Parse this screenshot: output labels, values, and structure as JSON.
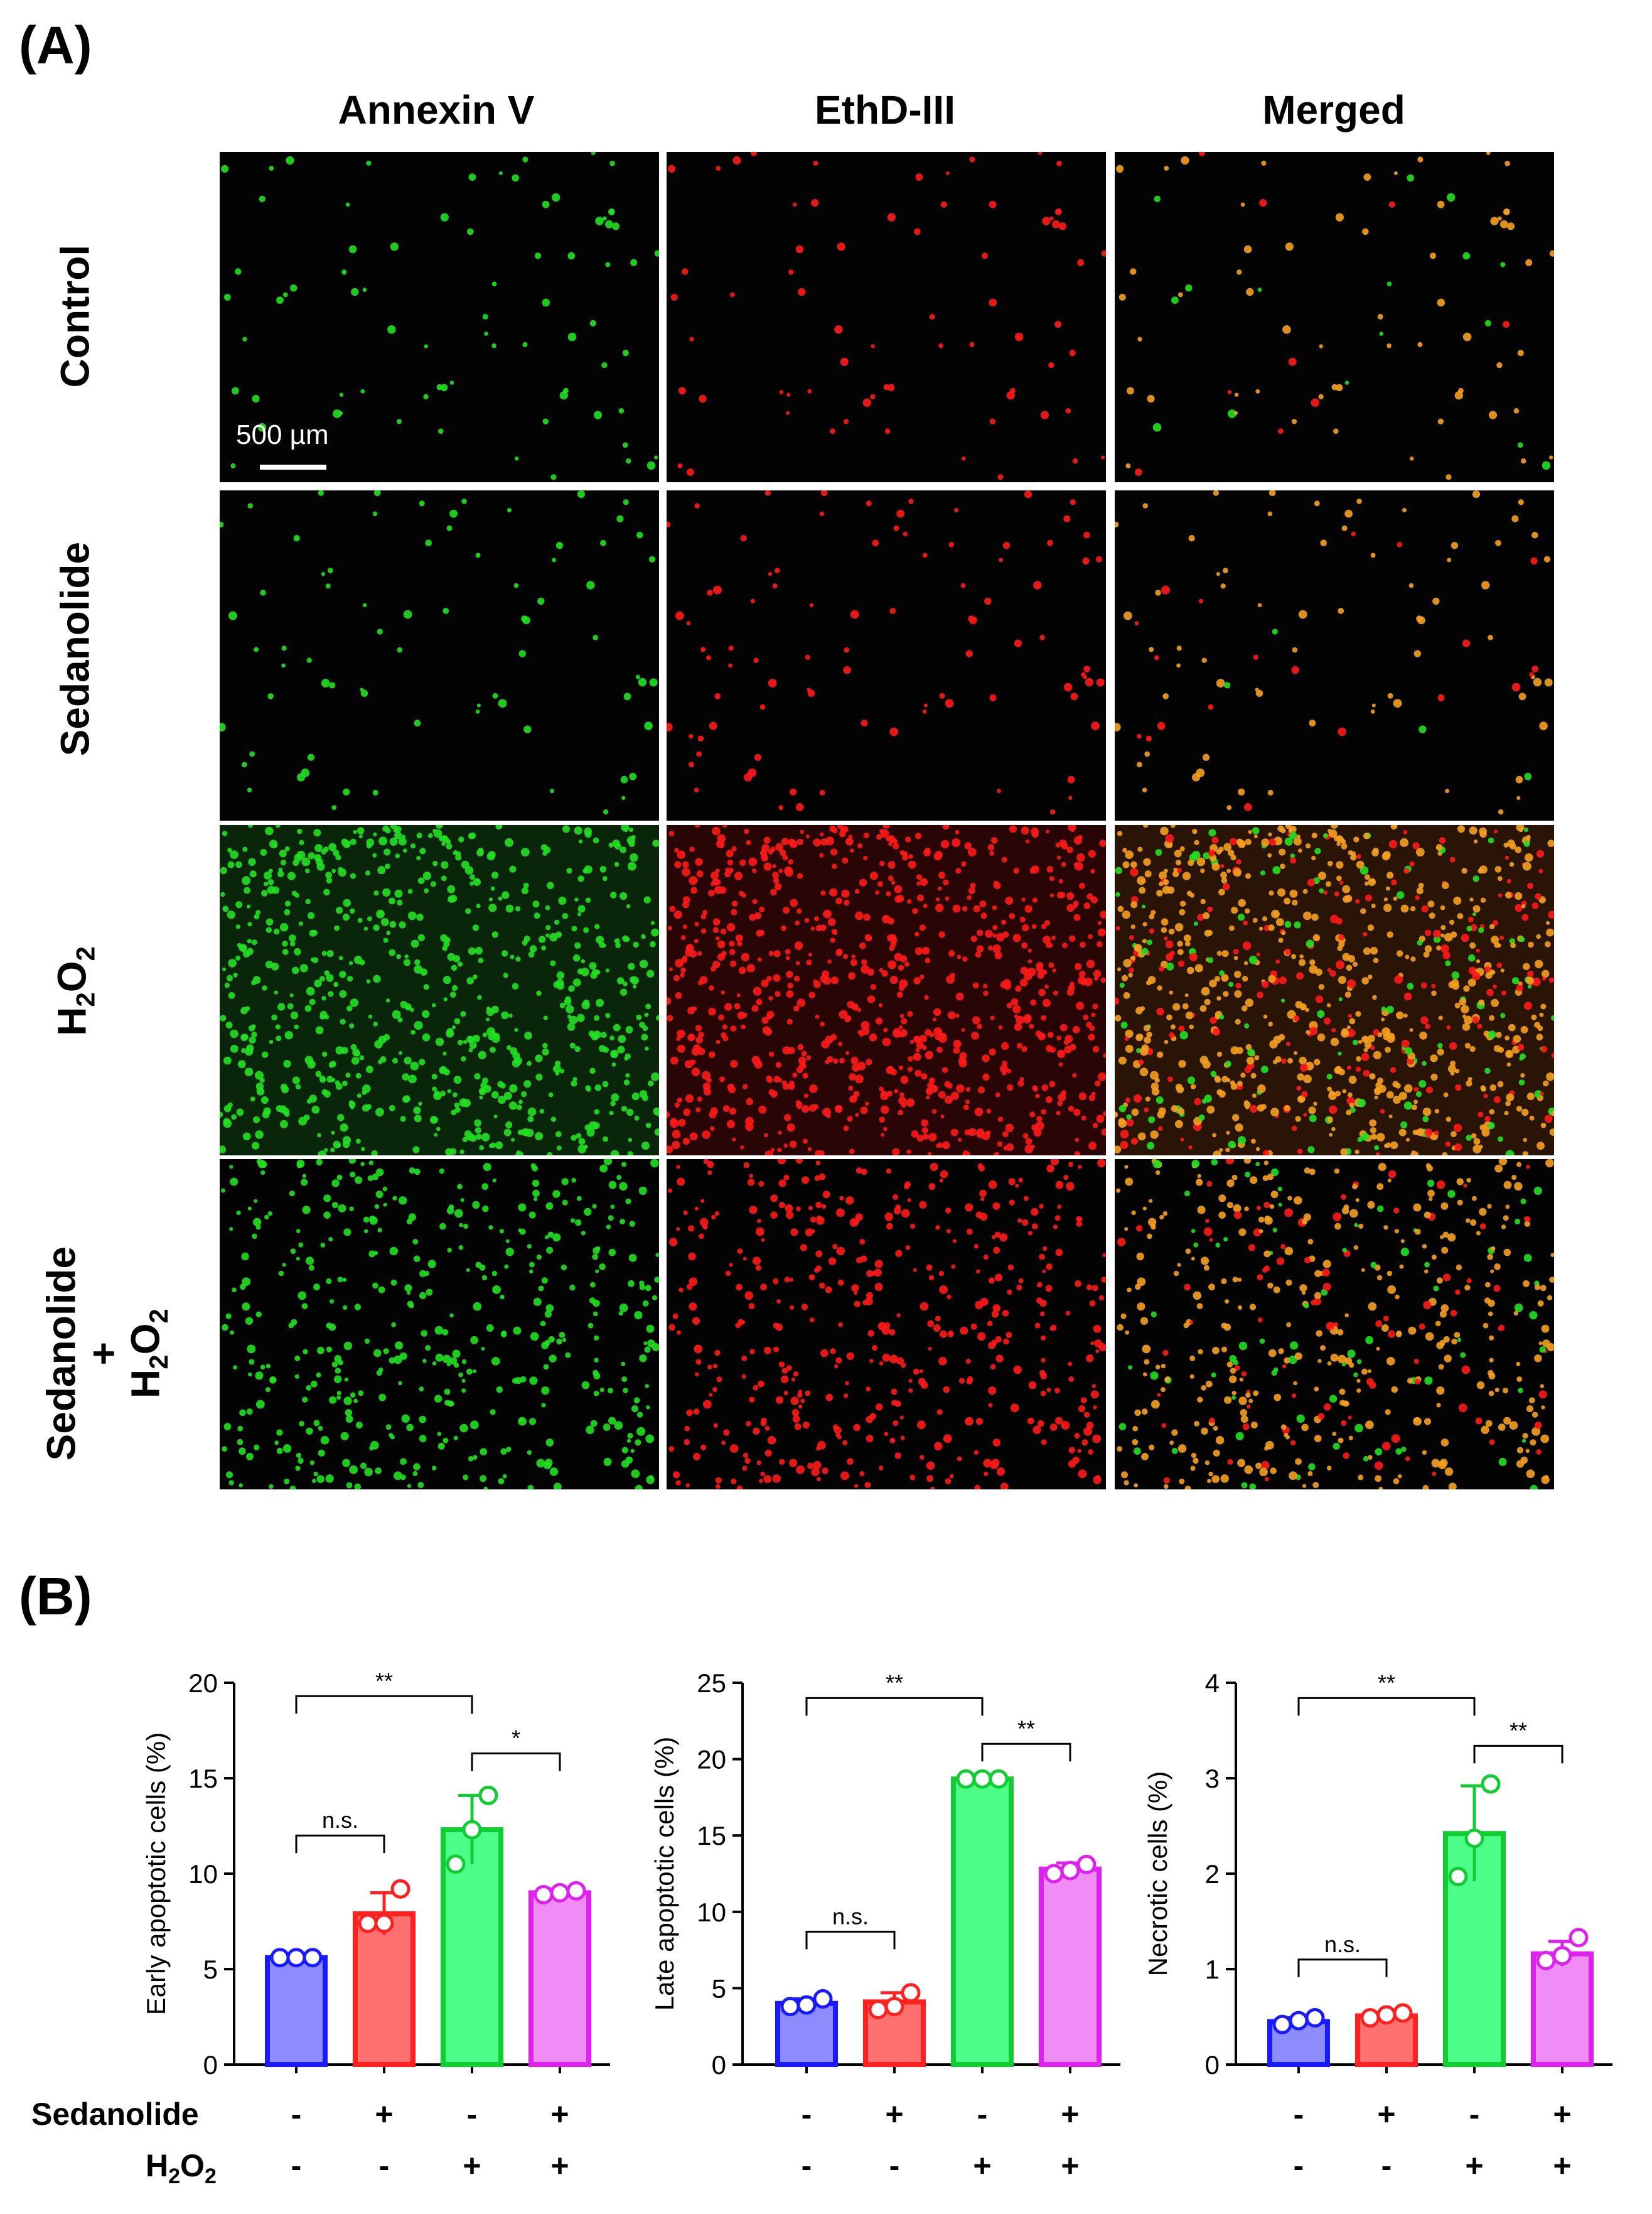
{
  "panel_a": {
    "letter": "(A)",
    "columns": [
      "Annexin V",
      "EthD-III",
      "Merged"
    ],
    "rows": [
      {
        "label": "Control",
        "density": 0.06
      },
      {
        "label": "Sedanolide",
        "density": 0.07
      },
      {
        "label_main": "H",
        "sub1": "2",
        "mid": "O",
        "sub2": "2",
        "density": 1.0
      },
      {
        "line1": "Sedanolide",
        "line2": "+",
        "label_main": "H",
        "sub1": "2",
        "mid": "O",
        "sub2": "2",
        "density": 0.55
      }
    ],
    "scale_bar": "500 µm",
    "colors": {
      "annexin": "#22e022",
      "ethd": "#ff1a1a",
      "merged_overlap": "#f5a020"
    }
  },
  "panel_b": {
    "letter": "(B)",
    "factors": [
      {
        "name": "Sedanolide",
        "signs": [
          "-",
          "+",
          "-",
          "+"
        ]
      },
      {
        "name_main": "H",
        "sub1": "2",
        "mid": "O",
        "sub2": "2",
        "signs": [
          "-",
          "-",
          "+",
          "+"
        ]
      }
    ]
  },
  "chart_data": [
    {
      "type": "bar",
      "ylabel": "Early apoptotic cells (%)",
      "ylim": [
        0,
        20
      ],
      "yticks": [
        0,
        5,
        10,
        15,
        20
      ],
      "values": [
        5.6,
        7.9,
        12.3,
        9.0
      ],
      "errors": [
        0.1,
        1.1,
        1.8,
        0.2
      ],
      "points": [
        [
          5.6,
          5.6,
          5.6
        ],
        [
          7.4,
          7.4,
          9.2
        ],
        [
          10.5,
          12.3,
          14.1
        ],
        [
          8.9,
          9.0,
          9.1
        ]
      ],
      "colors_fill": [
        "#8c8cff",
        "#ff7070",
        "#4dff88",
        "#f08cf5"
      ],
      "colors_edge": [
        "#1a1aff",
        "#ff2020",
        "#11cc33",
        "#dd22ee"
      ],
      "brackets": [
        {
          "from": 0,
          "to": 2,
          "y": 19.3,
          "label": "**"
        },
        {
          "from": 2,
          "to": 3,
          "y": 16.3,
          "label": "*"
        },
        {
          "from": 0,
          "to": 1,
          "y": 12.0,
          "label": "n.s."
        }
      ]
    },
    {
      "type": "bar",
      "ylabel": "Late apoptotic cells (%)",
      "ylim": [
        0,
        25
      ],
      "yticks": [
        0,
        5,
        10,
        15,
        20,
        25
      ],
      "values": [
        4.0,
        4.1,
        18.7,
        12.8
      ],
      "errors": [
        0.3,
        0.6,
        0.1,
        0.4
      ],
      "points": [
        [
          3.8,
          3.9,
          4.3
        ],
        [
          3.6,
          3.8,
          4.7
        ],
        [
          18.7,
          18.7,
          18.7
        ],
        [
          12.5,
          12.7,
          13.1
        ]
      ],
      "colors_fill": [
        "#8c8cff",
        "#ff7070",
        "#4dff88",
        "#f08cf5"
      ],
      "colors_edge": [
        "#1a1aff",
        "#ff2020",
        "#11cc33",
        "#dd22ee"
      ],
      "brackets": [
        {
          "from": 0,
          "to": 2,
          "y": 24.0,
          "label": "**"
        },
        {
          "from": 2,
          "to": 3,
          "y": 21.0,
          "label": "**"
        },
        {
          "from": 0,
          "to": 1,
          "y": 8.7,
          "label": "n.s."
        }
      ]
    },
    {
      "type": "bar",
      "ylabel": "Necrotic cells (%)",
      "ylim": [
        0,
        4
      ],
      "yticks": [
        0,
        1,
        2,
        3,
        4
      ],
      "values": [
        0.45,
        0.51,
        2.42,
        1.16
      ],
      "errors": [
        0.04,
        0.03,
        0.5,
        0.13
      ],
      "points": [
        [
          0.42,
          0.46,
          0.49
        ],
        [
          0.49,
          0.52,
          0.54
        ],
        [
          1.97,
          2.37,
          2.94
        ],
        [
          1.09,
          1.14,
          1.33
        ]
      ],
      "colors_fill": [
        "#8c8cff",
        "#ff7070",
        "#4dff88",
        "#f08cf5"
      ],
      "colors_edge": [
        "#1a1aff",
        "#ff2020",
        "#11cc33",
        "#dd22ee"
      ],
      "brackets": [
        {
          "from": 0,
          "to": 2,
          "y": 3.84,
          "label": "**"
        },
        {
          "from": 2,
          "to": 3,
          "y": 3.34,
          "label": "**"
        },
        {
          "from": 0,
          "to": 1,
          "y": 1.1,
          "label": "n.s."
        }
      ]
    }
  ]
}
